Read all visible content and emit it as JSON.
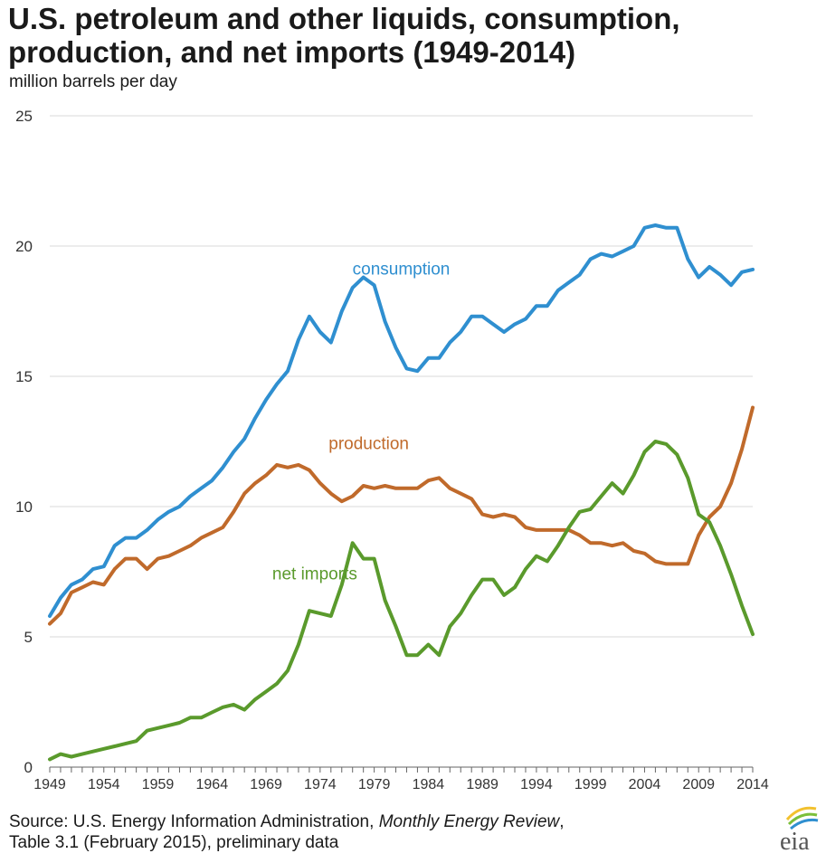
{
  "header": {
    "title_line1": "U.S. petroleum and other liquids, consumption,",
    "title_line2": "production, and net imports (1949-2014)",
    "unit": "million barrels per day"
  },
  "footer": {
    "source_prefix": "Source: U.S. Energy Information Administration, ",
    "source_italic": "Monthly Energy Review",
    "source_line1_end": ",",
    "source_line2": "Table 3.1 (February 2015), preliminary data",
    "logo_text": "eia"
  },
  "colors": {
    "consumption": "#2f8fd0",
    "production": "#c06a2b",
    "net_imports": "#5a9a2c",
    "grid": "#d9d9d9",
    "axis": "#666666",
    "logo_arc_yellow": "#f2c12e",
    "logo_arc_green": "#7bbf3b",
    "logo_arc_blue": "#2f8fd0"
  },
  "chart_data": {
    "type": "line",
    "xlabel": "",
    "ylabel": "million barrels per day",
    "xlim": [
      1949,
      2014
    ],
    "ylim": [
      0,
      25
    ],
    "yticks": [
      0,
      5,
      10,
      15,
      20,
      25
    ],
    "xticks": [
      1949,
      1954,
      1959,
      1964,
      1969,
      1974,
      1979,
      1984,
      1989,
      1994,
      1999,
      2004,
      2009,
      2014
    ],
    "grid": true,
    "legend": "inline labels",
    "x": [
      1949,
      1950,
      1951,
      1952,
      1953,
      1954,
      1955,
      1956,
      1957,
      1958,
      1959,
      1960,
      1961,
      1962,
      1963,
      1964,
      1965,
      1966,
      1967,
      1968,
      1969,
      1970,
      1971,
      1972,
      1973,
      1974,
      1975,
      1976,
      1977,
      1978,
      1979,
      1980,
      1981,
      1982,
      1983,
      1984,
      1985,
      1986,
      1987,
      1988,
      1989,
      1990,
      1991,
      1992,
      1993,
      1994,
      1995,
      1996,
      1997,
      1998,
      1999,
      2000,
      2001,
      2002,
      2003,
      2004,
      2005,
      2006,
      2007,
      2008,
      2009,
      2010,
      2011,
      2012,
      2013,
      2014
    ],
    "series": [
      {
        "name": "consumption",
        "color_key": "consumption",
        "label_x": 1981.5,
        "label_y": 18.9,
        "values": [
          5.8,
          6.5,
          7.0,
          7.2,
          7.6,
          7.7,
          8.5,
          8.8,
          8.8,
          9.1,
          9.5,
          9.8,
          10.0,
          10.4,
          10.7,
          11.0,
          11.5,
          12.1,
          12.6,
          13.4,
          14.1,
          14.7,
          15.2,
          16.4,
          17.3,
          16.7,
          16.3,
          17.5,
          18.4,
          18.8,
          18.5,
          17.1,
          16.1,
          15.3,
          15.2,
          15.7,
          15.7,
          16.3,
          16.7,
          17.3,
          17.3,
          17.0,
          16.7,
          17.0,
          17.2,
          17.7,
          17.7,
          18.3,
          18.6,
          18.9,
          19.5,
          19.7,
          19.6,
          19.8,
          20.0,
          20.7,
          20.8,
          20.7,
          20.7,
          19.5,
          18.8,
          19.2,
          18.9,
          18.5,
          19.0,
          19.1
        ]
      },
      {
        "name": "production",
        "color_key": "production",
        "label_x": 1978.5,
        "label_y": 12.2,
        "values": [
          5.5,
          5.9,
          6.7,
          6.9,
          7.1,
          7.0,
          7.6,
          8.0,
          8.0,
          7.6,
          8.0,
          8.1,
          8.3,
          8.5,
          8.8,
          9.0,
          9.2,
          9.8,
          10.5,
          10.9,
          11.2,
          11.6,
          11.5,
          11.6,
          11.4,
          10.9,
          10.5,
          10.2,
          10.4,
          10.8,
          10.7,
          10.8,
          10.7,
          10.7,
          10.7,
          11.0,
          11.1,
          10.7,
          10.5,
          10.3,
          9.7,
          9.6,
          9.7,
          9.6,
          9.2,
          9.1,
          9.1,
          9.1,
          9.1,
          8.9,
          8.6,
          8.6,
          8.5,
          8.6,
          8.3,
          8.2,
          7.9,
          7.8,
          7.8,
          7.8,
          8.9,
          9.6,
          10.0,
          10.9,
          12.2,
          13.8
        ]
      },
      {
        "name": "net imports",
        "color_key": "net_imports",
        "label_x": 1973.5,
        "label_y": 7.2,
        "values": [
          0.3,
          0.5,
          0.4,
          0.5,
          0.6,
          0.7,
          0.8,
          0.9,
          1.0,
          1.4,
          1.5,
          1.6,
          1.7,
          1.9,
          1.9,
          2.1,
          2.3,
          2.4,
          2.2,
          2.6,
          2.9,
          3.2,
          3.7,
          4.7,
          6.0,
          5.9,
          5.8,
          7.0,
          8.6,
          8.0,
          8.0,
          6.4,
          5.4,
          4.3,
          4.3,
          4.7,
          4.3,
          5.4,
          5.9,
          6.6,
          7.2,
          7.2,
          6.6,
          6.9,
          7.6,
          8.1,
          7.9,
          8.5,
          9.2,
          9.8,
          9.9,
          10.4,
          10.9,
          10.5,
          11.2,
          12.1,
          12.5,
          12.4,
          12.0,
          11.1,
          9.7,
          9.4,
          8.5,
          7.4,
          6.2,
          5.1
        ]
      }
    ]
  }
}
